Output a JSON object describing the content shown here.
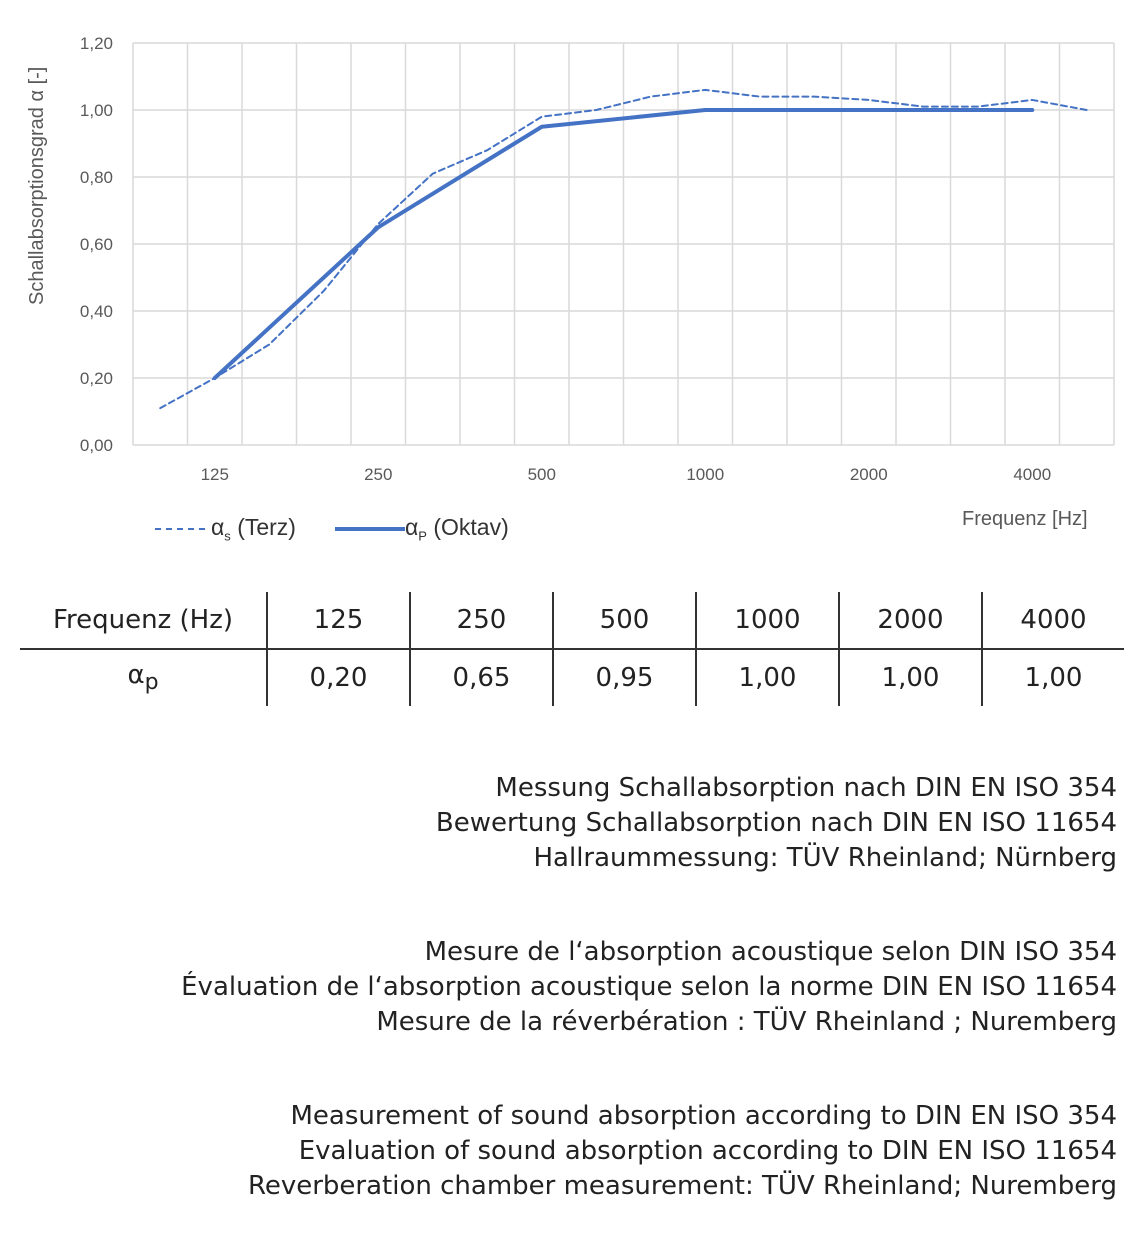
{
  "chart_data": {
    "type": "line",
    "ylabel": "Schallabsorptionsgrad α [-]",
    "xlabel": "Frequenz [Hz]",
    "ylim": [
      0,
      1.2
    ],
    "yticks": [
      "0,00",
      "0,20",
      "0,40",
      "0,60",
      "0,80",
      "1,00",
      "1,20"
    ],
    "x": [
      "100",
      "125",
      "160",
      "200",
      "250",
      "315",
      "400",
      "500",
      "630",
      "800",
      "1000",
      "1250",
      "1600",
      "2000",
      "2500",
      "3150",
      "4000",
      "5000"
    ],
    "xtick_labels": {
      "125": "125",
      "250": "250",
      "500": "500",
      "1000": "1000",
      "2000": "2000",
      "4000": "4000"
    },
    "grid": true,
    "legend_placement": "bottom-left",
    "series": [
      {
        "name": "αs (Terz)",
        "style": "dashed",
        "color": "#4472C4",
        "values": [
          0.11,
          0.2,
          0.3,
          0.46,
          0.66,
          0.81,
          0.88,
          0.98,
          1.0,
          1.04,
          1.06,
          1.04,
          1.04,
          1.03,
          1.01,
          1.01,
          1.03,
          1.0
        ]
      },
      {
        "name": "αP (Oktav)",
        "style": "solid",
        "color": "#4472C4",
        "values": [
          null,
          0.2,
          null,
          null,
          0.65,
          null,
          null,
          0.95,
          null,
          null,
          1.0,
          null,
          null,
          1.0,
          null,
          null,
          1.0,
          null
        ]
      }
    ]
  },
  "legend": {
    "terz_alpha": "α",
    "terz_sub": "s",
    "terz_label": "(Terz)",
    "oktav_alpha": "α",
    "oktav_sub": "P",
    "oktav_label": "(Oktav)"
  },
  "table": {
    "header": [
      "Frequenz (Hz)",
      "125",
      "250",
      "500",
      "1000",
      "2000",
      "4000"
    ],
    "row_label_alpha": "α",
    "row_label_sub": "p",
    "values": [
      "0,20",
      "0,65",
      "0,95",
      "1,00",
      "1,00",
      "1,00"
    ]
  },
  "notes": {
    "de": [
      "Messung Schallabsorption nach DIN EN ISO 354",
      "Bewertung Schallabsorption nach DIN EN ISO 11654",
      "Hallraummessung: TÜV Rheinland; Nürnberg"
    ],
    "fr": [
      "Mesure de l‘absorption acoustique selon DIN ISO 354",
      "Évaluation de l‘absorption acoustique selon la norme DIN EN ISO 11654",
      "Mesure de la réverbération : TÜV Rheinland ; Nuremberg"
    ],
    "en": [
      "Measurement of sound absorption according to DIN EN ISO 354",
      "Evaluation of sound absorption according to DIN EN ISO 11654",
      "Reverberation chamber measurement: TÜV Rheinland; Nuremberg"
    ]
  }
}
